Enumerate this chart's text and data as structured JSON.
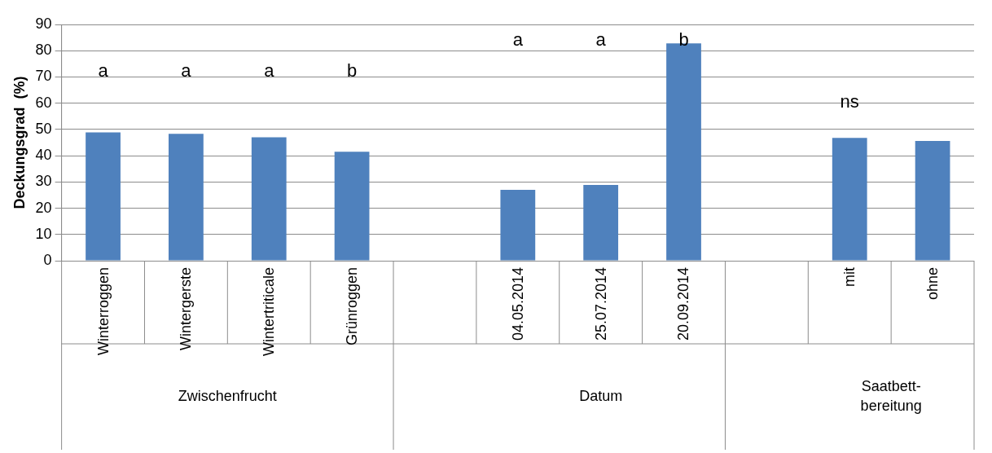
{
  "chart_data": {
    "type": "bar",
    "ylabel": "Deckungsgrad  (%)",
    "categories": [
      "Winterroggen",
      "Wintergerste",
      "Wintertriticale",
      "Grünroggen",
      null,
      "04.05.2014",
      "25.07.2014",
      "20.09.2014",
      null,
      "mit",
      "ohne"
    ],
    "values": [
      48.9,
      48.3,
      47.0,
      41.5,
      null,
      27.0,
      28.9,
      82.8,
      null,
      46.8,
      45.6
    ],
    "color": "#4f81bd",
    "ylim": [
      0,
      90
    ],
    "yticks": [
      0,
      10,
      20,
      30,
      40,
      50,
      60,
      70,
      80,
      90
    ],
    "grid": "y",
    "legend": false,
    "annotations": [
      "Zwischenfrucht",
      "Datum",
      "Saatbett-\nbereitung",
      "a",
      "a",
      "a",
      "b",
      "a",
      "a",
      "b",
      "ns"
    ]
  }
}
